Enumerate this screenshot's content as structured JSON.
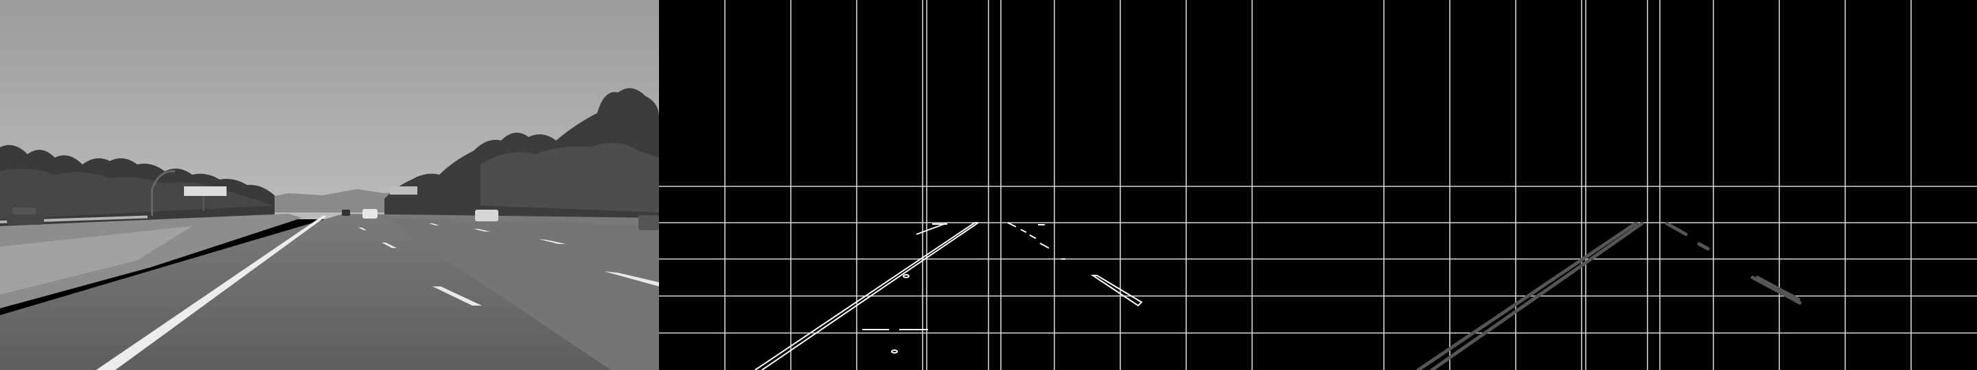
{
  "panels": [
    {
      "id": "grayscale-road-photo",
      "kind": "grayscale photograph of a highway"
    },
    {
      "id": "canny-edge-map",
      "kind": "edge detection result with grid overlay"
    },
    {
      "id": "hough-lane-lines",
      "kind": "detected lane line segments with grid overlay"
    }
  ],
  "colors": {
    "sky": "#a6a6a6",
    "road": "#6a6a6a",
    "background": "#000000",
    "grid": "#d8d8d8",
    "edge": "#ffffff",
    "lane_segment": "#555555"
  }
}
